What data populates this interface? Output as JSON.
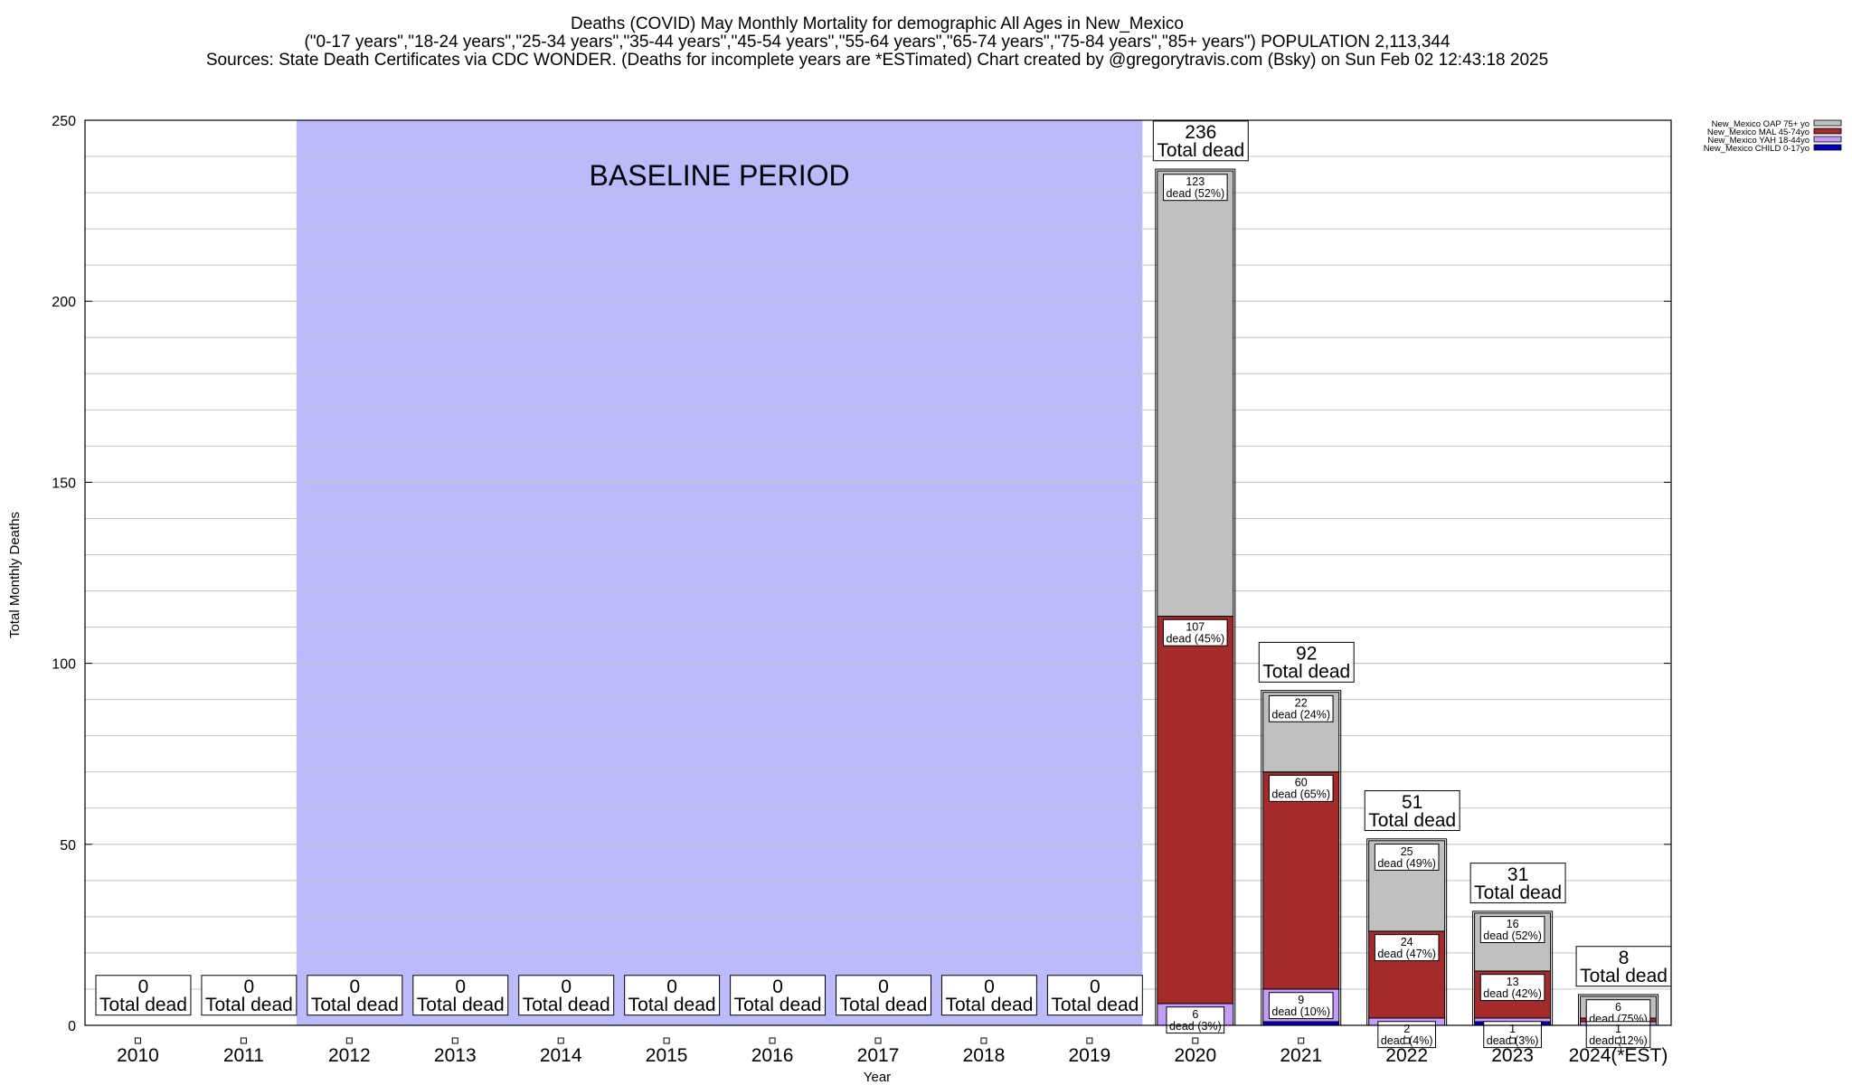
{
  "chart_data": {
    "type": "bar",
    "stacked": true,
    "title_lines": [
      "Deaths (COVID) May Monthly Mortality for demographic All Ages in New_Mexico",
      "(\"0-17 years\",\"18-24 years\",\"25-34 years\",\"35-44 years\",\"45-54 years\",\"55-64 years\",\"65-74 years\",\"75-84 years\",\"85+ years\") POPULATION 2,113,344",
      "Sources: State Death Certificates via CDC WONDER. (Deaths for incomplete years are *ESTimated)                Chart created by @gregorytravis.com (Bsky) on Sun Feb 02 12:43:18 2025"
    ],
    "xlabel": "Year",
    "ylabel": "Total Monthly Deaths",
    "ylim": [
      0,
      250
    ],
    "yticks": [
      0,
      50,
      100,
      150,
      200,
      250
    ],
    "grid": true,
    "legend_position": "top-right",
    "baseline": {
      "label": "BASELINE PERIOD",
      "start": "2012",
      "end": "2019",
      "color": "#bbbbfb"
    },
    "categories": [
      "2010",
      "2011",
      "2012",
      "2013",
      "2014",
      "2015",
      "2016",
      "2017",
      "2018",
      "2019",
      "2020",
      "2021",
      "2022",
      "2023",
      "2024(*EST)"
    ],
    "series": [
      {
        "name": "New_Mexico CHILD 0-17yo",
        "color": "#0000c0",
        "values": [
          0,
          0,
          0,
          0,
          0,
          0,
          0,
          0,
          0,
          0,
          0,
          1,
          0,
          1,
          0
        ]
      },
      {
        "name": "New_Mexico YAH 18-44yo",
        "color": "#c49cfa",
        "values": [
          0,
          0,
          0,
          0,
          0,
          0,
          0,
          0,
          0,
          0,
          6,
          9,
          2,
          1,
          1
        ]
      },
      {
        "name": "New_Mexico MAL 45-74yo",
        "color": "#a52a2a",
        "values": [
          0,
          0,
          0,
          0,
          0,
          0,
          0,
          0,
          0,
          0,
          107,
          60,
          24,
          13,
          1
        ]
      },
      {
        "name": "New_Mexico OAP 75+ yo",
        "color": "#c0c0c0",
        "values": [
          0,
          0,
          0,
          0,
          0,
          0,
          0,
          0,
          0,
          0,
          123,
          22,
          25,
          16,
          6
        ]
      }
    ],
    "totals": [
      0,
      0,
      0,
      0,
      0,
      0,
      0,
      0,
      0,
      0,
      236,
      92,
      51,
      31,
      8
    ],
    "total_suffix": "Total dead",
    "segment_labels": [
      {
        "category": "2020",
        "series": "New_Mexico OAP 75+ yo",
        "count": "123",
        "text": "dead (52%)"
      },
      {
        "category": "2020",
        "series": "New_Mexico MAL 45-74yo",
        "count": "107",
        "text": "dead (45%)"
      },
      {
        "category": "2020",
        "series": "New_Mexico YAH 18-44yo",
        "count": "6",
        "text": "dead (3%)"
      },
      {
        "category": "2021",
        "series": "New_Mexico OAP 75+ yo",
        "count": "22",
        "text": "dead (24%)"
      },
      {
        "category": "2021",
        "series": "New_Mexico MAL 45-74yo",
        "count": "60",
        "text": "dead (65%)"
      },
      {
        "category": "2021",
        "series": "New_Mexico YAH 18-44yo",
        "count": "9",
        "text": "dead (10%)"
      },
      {
        "category": "2022",
        "series": "New_Mexico OAP 75+ yo",
        "count": "25",
        "text": "dead (49%)"
      },
      {
        "category": "2022",
        "series": "New_Mexico MAL 45-74yo",
        "count": "24",
        "text": "dead (47%)"
      },
      {
        "category": "2022",
        "series": "New_Mexico YAH 18-44yo",
        "count": "2",
        "text": "dead (4%)"
      },
      {
        "category": "2023",
        "series": "New_Mexico OAP 75+ yo",
        "count": "16",
        "text": "dead (52%)"
      },
      {
        "category": "2023",
        "series": "New_Mexico MAL 45-74yo",
        "count": "13",
        "text": "dead (42%)"
      },
      {
        "category": "2023",
        "series": "New_Mexico YAH 18-44yo",
        "count": "1",
        "text": "dead (3%)"
      },
      {
        "category": "2024(*EST)",
        "series": "New_Mexico OAP 75+ yo",
        "count": "6",
        "text": "dead (75%)"
      },
      {
        "category": "2024(*EST)",
        "series": "New_Mexico MAL 45-74yo",
        "count": "1",
        "text": "dead (12%)"
      }
    ]
  }
}
